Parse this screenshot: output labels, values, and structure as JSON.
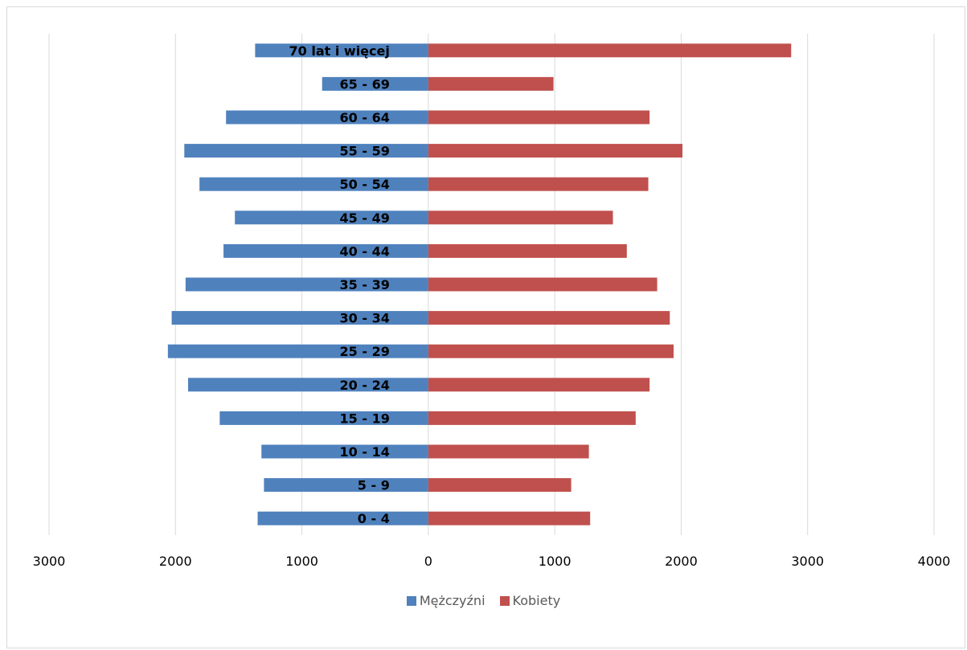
{
  "chart_data": {
    "type": "bar",
    "orientation": "horizontal",
    "layout": "population-pyramid",
    "title": "",
    "xlabel": "",
    "ylabel": "",
    "categories": [
      "0 - 4",
      "5 - 9",
      "10 - 14",
      "15 - 19",
      "20 - 24",
      "25 - 29",
      "30 - 34",
      "35 - 39",
      "40 - 44",
      "45 - 49",
      "50 - 54",
      "55 - 59",
      "60 - 64",
      "65 - 69",
      "70 lat i więcej"
    ],
    "series": [
      {
        "name": "Mężczyźni",
        "color": "#4f81bd",
        "values": [
          -1350,
          -1300,
          -1320,
          -1650,
          -1900,
          -2060,
          -2030,
          -1920,
          -1620,
          -1530,
          -1810,
          -1930,
          -1600,
          -840,
          -1370
        ]
      },
      {
        "name": "Kobiety",
        "color": "#c0504d",
        "values": [
          1280,
          1130,
          1270,
          1640,
          1750,
          1940,
          1910,
          1810,
          1570,
          1460,
          1740,
          2010,
          1750,
          990,
          2870
        ]
      }
    ],
    "xlim": [
      -3000,
      4000
    ],
    "xticks": [
      -3000,
      -2000,
      -1000,
      0,
      1000,
      2000,
      3000,
      4000
    ],
    "xtick_labels": [
      "3000",
      "2000",
      "1000",
      "0",
      "1000",
      "2000",
      "3000",
      "4000"
    ],
    "grid": true,
    "legend_position": "bottom"
  }
}
